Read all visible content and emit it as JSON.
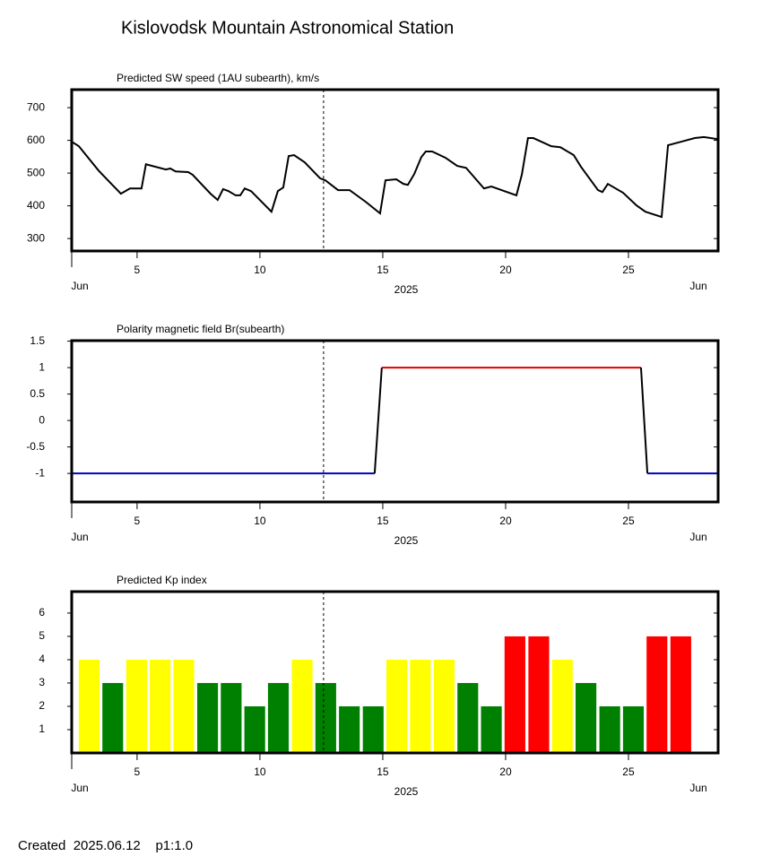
{
  "title": "Kislovodsk Mountain Astronomical Station",
  "footer": "Created  2025.06.12    p1:1.0",
  "chart_data": [
    {
      "type": "line",
      "title": "Predicted SW speed (1AU subearth), km/s",
      "x": [
        2.34,
        2.63,
        3.43,
        4.34,
        4.71,
        4.89,
        5.18,
        5.36,
        6.17,
        6.35,
        6.57,
        7.08,
        7.26,
        7.99,
        8.28,
        8.5,
        8.72,
        9.01,
        9.2,
        9.38,
        9.64,
        10.47,
        10.73,
        10.95,
        11.17,
        11.39,
        11.82,
        12.45,
        12.66,
        13.18,
        13.65,
        14.31,
        14.89,
        15.11,
        15.55,
        15.84,
        16.02,
        16.28,
        16.57,
        16.75,
        17.01,
        17.55,
        18.03,
        18.39,
        19.12,
        19.42,
        20.44,
        20.66,
        20.91,
        21.13,
        21.86,
        22.23,
        22.77,
        23.07,
        23.76,
        23.94,
        24.16,
        24.78,
        25.33,
        25.69,
        26.35,
        26.61,
        27.7,
        28.07,
        28.61
      ],
      "values": [
        596,
        582,
        508,
        437,
        453,
        453,
        453,
        527,
        511,
        514,
        505,
        503,
        495,
        437,
        418,
        451,
        445,
        432,
        432,
        453,
        445,
        382,
        445,
        456,
        552,
        555,
        533,
        484,
        478,
        448,
        448,
        412,
        377,
        478,
        481,
        467,
        464,
        497,
        549,
        566,
        566,
        547,
        522,
        516,
        453,
        459,
        432,
        495,
        607,
        607,
        582,
        579,
        555,
        519,
        448,
        442,
        467,
        440,
        401,
        382,
        366,
        585,
        607,
        610,
        604
      ],
      "color": "#000000",
      "xlim": [
        2.34,
        28.65
      ],
      "xticks": [
        5,
        10,
        15,
        20,
        25
      ],
      "x_end_labels": [
        "Jun",
        "Jun"
      ],
      "xlabel": "2025",
      "ylim": [
        262,
        755
      ],
      "yticks": [
        300,
        400,
        500,
        600,
        700
      ],
      "marker_x": 12.59
    },
    {
      "type": "line",
      "title": "Polarity magnetic field  Br(subearth)",
      "x": [
        2.34,
        14.67,
        14.96,
        25.51,
        25.77,
        28.65
      ],
      "values": [
        -1,
        -1,
        1,
        1,
        -1,
        -1
      ],
      "segment_colors": [
        "#0000c0",
        "#000000",
        "#e00000",
        "#000000",
        "#0000c0"
      ],
      "xlim": [
        2.34,
        28.65
      ],
      "xticks": [
        5,
        10,
        15,
        20,
        25
      ],
      "x_end_labels": [
        "Jun",
        "Jun"
      ],
      "xlabel": "2025",
      "ylim": [
        -1.54,
        1.51
      ],
      "yticks": [
        1.5,
        1,
        0.5,
        0,
        -0.5,
        -1
      ],
      "marker_x": 12.59
    },
    {
      "type": "bar",
      "title": "Predicted Kp index",
      "x": [
        3.05,
        4.01,
        4.98,
        5.94,
        6.9,
        7.87,
        8.83,
        9.79,
        10.75,
        11.72,
        12.68,
        13.64,
        14.61,
        15.57,
        16.53,
        17.5,
        18.46,
        19.42,
        20.38,
        21.35,
        22.31,
        23.27,
        24.24,
        25.2,
        26.16,
        27.13
      ],
      "values": [
        4,
        3,
        4,
        4,
        4,
        3,
        3,
        2,
        3,
        4,
        3,
        2,
        2,
        4,
        4,
        4,
        3,
        2,
        5,
        5,
        4,
        3,
        2,
        2,
        5,
        5
      ],
      "colors": [
        "#ffff00",
        "#008000",
        "#ffff00",
        "#ffff00",
        "#ffff00",
        "#008000",
        "#008000",
        "#008000",
        "#008000",
        "#ffff00",
        "#008000",
        "#008000",
        "#008000",
        "#ffff00",
        "#ffff00",
        "#ffff00",
        "#008000",
        "#008000",
        "#ff0000",
        "#ff0000",
        "#ffff00",
        "#008000",
        "#008000",
        "#008000",
        "#ff0000",
        "#ff0000"
      ],
      "xlim": [
        2.34,
        28.65
      ],
      "xticks": [
        5,
        10,
        15,
        20,
        25
      ],
      "x_end_labels": [
        "Jun",
        "Jun"
      ],
      "xlabel": "2025",
      "ylim": [
        0,
        6.92
      ],
      "yticks": [
        1,
        2,
        3,
        4,
        5,
        6
      ],
      "marker_x": 12.59
    }
  ]
}
